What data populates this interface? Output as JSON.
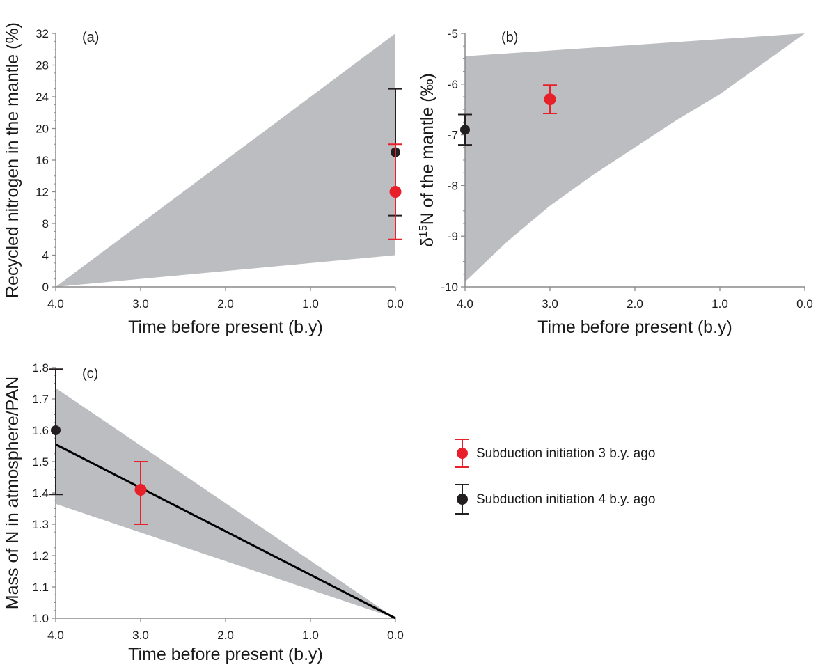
{
  "chart_data": [
    {
      "panel_label": "(a)",
      "type": "area",
      "xlabel": "Time before present (b.y)",
      "ylabel": "Recycled nitrogen in the mantle (%)",
      "xlim": [
        4.0,
        0.0
      ],
      "x_reversed": true,
      "ylim": [
        0,
        32
      ],
      "x_ticks": [
        "4.0",
        "3.0",
        "2.0",
        "1.0",
        "0.0"
      ],
      "y_ticks": [
        "0",
        "4",
        "8",
        "12",
        "16",
        "20",
        "24",
        "28",
        "32"
      ],
      "band": {
        "upper": [
          [
            4.0,
            0
          ],
          [
            0.0,
            32
          ]
        ],
        "lower": [
          [
            4.0,
            0
          ],
          [
            0.0,
            4
          ]
        ],
        "color": "#bcbdc0"
      },
      "points": [
        {
          "series": "Subduction initiation 4 b.y. ago",
          "x": 0.0,
          "y": 17,
          "err_low": 9,
          "err_high": 25,
          "color": "#231f20"
        },
        {
          "series": "Subduction initiation 3 b.y. ago",
          "x": 0.0,
          "y": 12,
          "err_low": 6,
          "err_high": 18,
          "color": "#e8202a"
        }
      ]
    },
    {
      "panel_label": "(b)",
      "type": "area",
      "xlabel": "Time before present (b.y)",
      "ylabel": "δ15N of the mantle (‰)",
      "ylabel_prefix": "δ",
      "ylabel_sup": "15",
      "ylabel_suffix": "N of the mantle (‰)",
      "xlim": [
        4.0,
        0.0
      ],
      "x_reversed": true,
      "ylim": [
        -10,
        -5
      ],
      "x_ticks": [
        "4.0",
        "3.0",
        "2.0",
        "1.0",
        "0.0"
      ],
      "y_ticks": [
        "-10",
        "-9",
        "-8",
        "-7",
        "-6",
        "-5"
      ],
      "band": {
        "upper": [
          [
            4.0,
            -5.45
          ],
          [
            0.0,
            -5.0
          ]
        ],
        "lower": [
          [
            4.0,
            -9.9
          ],
          [
            3.5,
            -9.1
          ],
          [
            3.0,
            -8.4
          ],
          [
            2.5,
            -7.8
          ],
          [
            2.0,
            -7.25
          ],
          [
            1.5,
            -6.7
          ],
          [
            1.0,
            -6.2
          ],
          [
            0.5,
            -5.6
          ],
          [
            0.0,
            -5.0
          ]
        ],
        "color": "#bcbdc0"
      },
      "points": [
        {
          "series": "Subduction initiation 4 b.y. ago",
          "x": 4.0,
          "y": -6.9,
          "err_low": -7.2,
          "err_high": -6.6,
          "color": "#231f20"
        },
        {
          "series": "Subduction initiation 3 b.y. ago",
          "x": 3.0,
          "y": -6.3,
          "err_low": -6.58,
          "err_high": -6.02,
          "color": "#e8202a"
        }
      ]
    },
    {
      "panel_label": "(c)",
      "type": "line",
      "xlabel": "Time before present (b.y)",
      "ylabel": "Mass of N in atmosphere/PAN",
      "xlim": [
        4.0,
        0.0
      ],
      "x_reversed": true,
      "ylim": [
        1.0,
        1.8
      ],
      "x_ticks": [
        "4.0",
        "3.0",
        "2.0",
        "1.0",
        "0.0"
      ],
      "y_ticks": [
        "1.0",
        "1.1",
        "1.2",
        "1.3",
        "1.4",
        "1.5",
        "1.6",
        "1.7",
        "1.8"
      ],
      "band": {
        "upper": [
          [
            4.0,
            1.735
          ],
          [
            0.0,
            1.0
          ]
        ],
        "lower": [
          [
            4.0,
            1.365
          ],
          [
            0.0,
            1.0
          ]
        ],
        "color": "#bcbdc0"
      },
      "line": [
        [
          4.0,
          1.555
        ],
        [
          0.0,
          1.0
        ]
      ],
      "points": [
        {
          "series": "Subduction initiation 4 b.y. ago",
          "x": 4.0,
          "y": 1.6,
          "err_low": 1.395,
          "err_high": 1.795,
          "color": "#231f20"
        },
        {
          "series": "Subduction initiation 3 b.y. ago",
          "x": 3.0,
          "y": 1.41,
          "err_low": 1.3,
          "err_high": 1.5,
          "color": "#e8202a"
        }
      ]
    }
  ],
  "legend": {
    "placement": "right of panel (c)",
    "items": [
      {
        "label": "Subduction initiation 3 b.y. ago",
        "color": "#e8202a"
      },
      {
        "label": "Subduction initiation 4 b.y. ago",
        "color": "#231f20"
      }
    ]
  }
}
